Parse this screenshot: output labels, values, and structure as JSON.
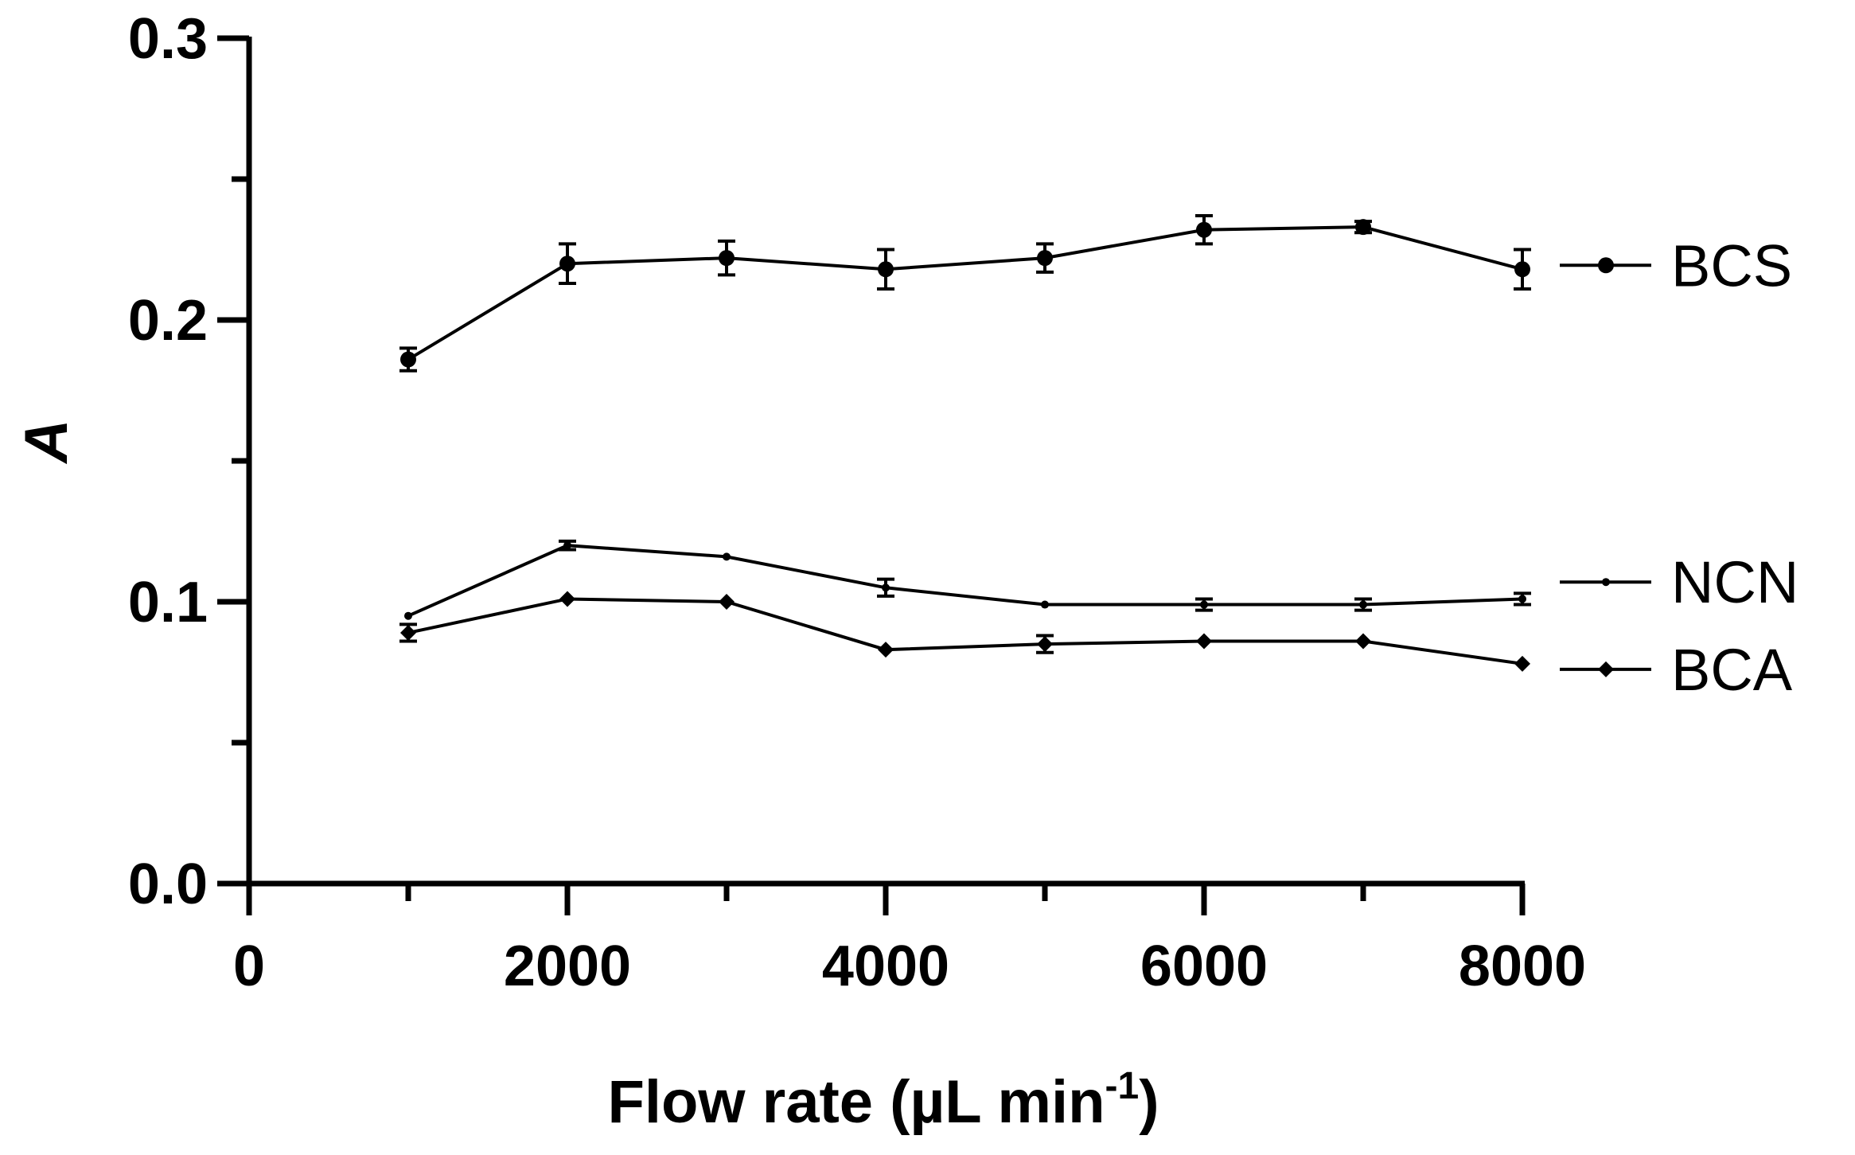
{
  "chart_data": {
    "type": "line",
    "title": "",
    "xlabel": "Flow rate (µL min",
    "xlabel_sup": "-1",
    "xlabel_end": ")",
    "ylabel": "A",
    "xlim": [
      0,
      8000
    ],
    "ylim": [
      0,
      0.3
    ],
    "x_ticks": [
      0,
      2000,
      4000,
      6000,
      8000
    ],
    "x_tick_labels": [
      "0",
      "2000",
      "4000",
      "6000",
      "8000"
    ],
    "y_ticks": [
      0,
      0.1,
      0.2,
      0.3
    ],
    "y_tick_labels": [
      "0.0",
      "0.1",
      "0.2",
      "0.3"
    ],
    "y_minor_ticks": [
      0.05,
      0.15,
      0.25
    ],
    "grid": false,
    "legend": "right",
    "x": [
      1000,
      2000,
      3000,
      4000,
      5000,
      6000,
      7000,
      8000
    ],
    "series": [
      {
        "name": "BCS",
        "marker": "circle",
        "values": [
          0.186,
          0.22,
          0.222,
          0.218,
          0.222,
          0.232,
          0.233,
          0.218
        ],
        "errors": [
          0.004,
          0.007,
          0.006,
          0.007,
          0.005,
          0.005,
          0.002,
          0.007
        ]
      },
      {
        "name": "NCN",
        "marker": "dot",
        "values": [
          0.095,
          0.12,
          0.116,
          0.105,
          0.099,
          0.099,
          0.099,
          0.101
        ],
        "errors": [
          0.0,
          0.0015,
          0.0,
          0.003,
          0.0,
          0.002,
          0.002,
          0.002
        ]
      },
      {
        "name": "BCA",
        "marker": "diamond",
        "values": [
          0.089,
          0.101,
          0.1,
          0.083,
          0.085,
          0.086,
          0.086,
          0.078
        ],
        "errors": [
          0.003,
          0.0,
          0.0,
          0.0,
          0.003,
          0.0,
          0.0,
          0.0
        ]
      }
    ]
  }
}
